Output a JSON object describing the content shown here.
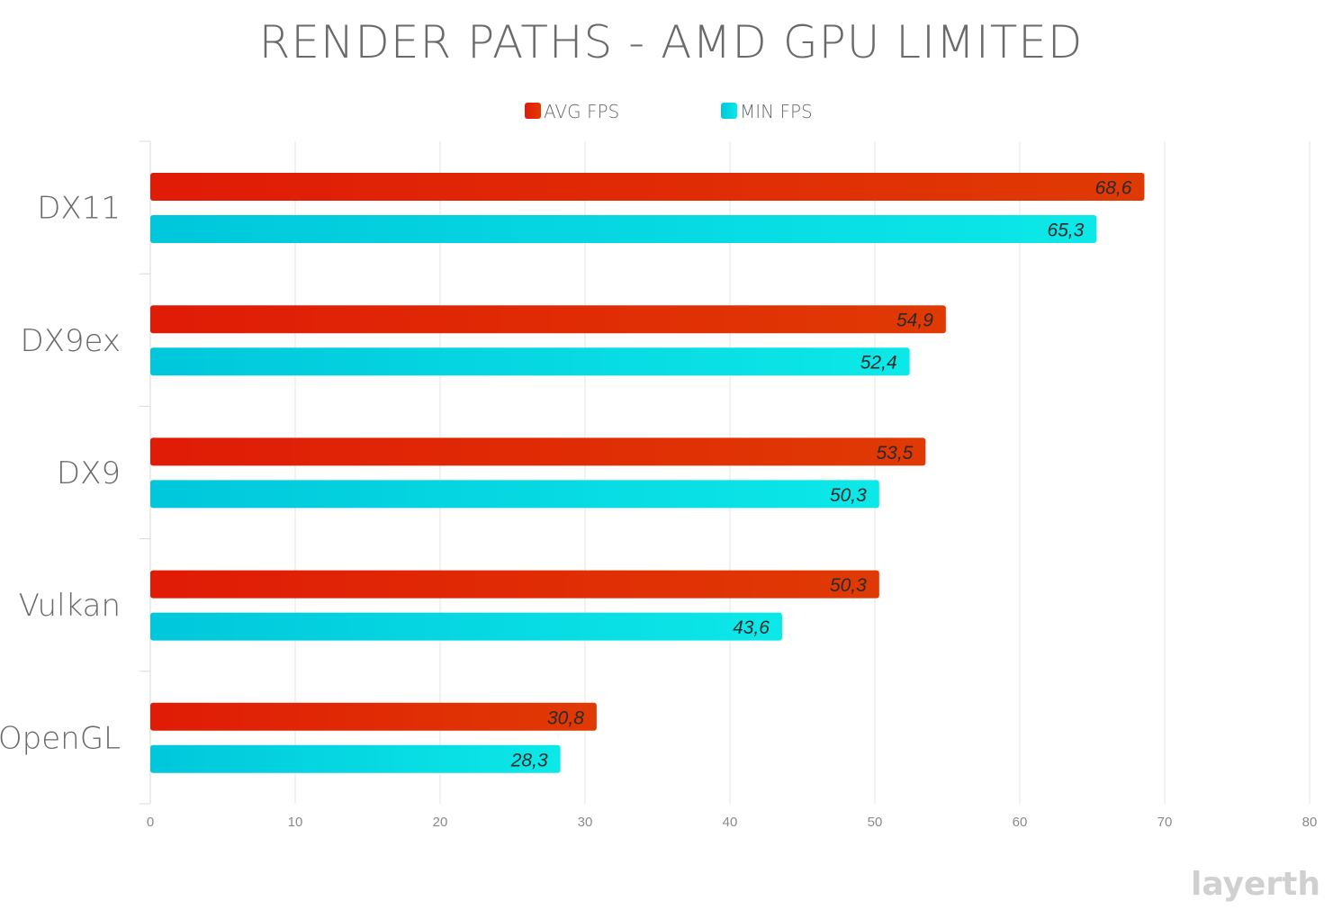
{
  "chart_data": {
    "type": "bar",
    "orientation": "horizontal",
    "title": "RENDER PATHS - AMD GPU LIMITED",
    "categories": [
      "DX11",
      "DX9ex",
      "DX9",
      "Vulkan",
      "OpenGL"
    ],
    "series": [
      {
        "name": "AVG FPS",
        "values": [
          68.6,
          54.9,
          53.5,
          50.3,
          30.8
        ],
        "labels": [
          "68,6",
          "54,9",
          "53,5",
          "50,3",
          "30,8"
        ],
        "color_start": "#e01b06",
        "color_end": "#e03a04"
      },
      {
        "name": "MIN FPS",
        "values": [
          65.3,
          52.4,
          50.3,
          43.6,
          28.3
        ],
        "labels": [
          "65,3",
          "52,4",
          "50,3",
          "43,6",
          "28,3"
        ],
        "color_start": "#00c7dc",
        "color_end": "#0ce8e8"
      }
    ],
    "xlim": [
      0,
      80
    ],
    "xticks": [
      "0",
      "10",
      "20",
      "30",
      "40",
      "50",
      "60",
      "70",
      "80"
    ],
    "grid": true,
    "legend_position": "top-center"
  },
  "watermark": "layerth"
}
